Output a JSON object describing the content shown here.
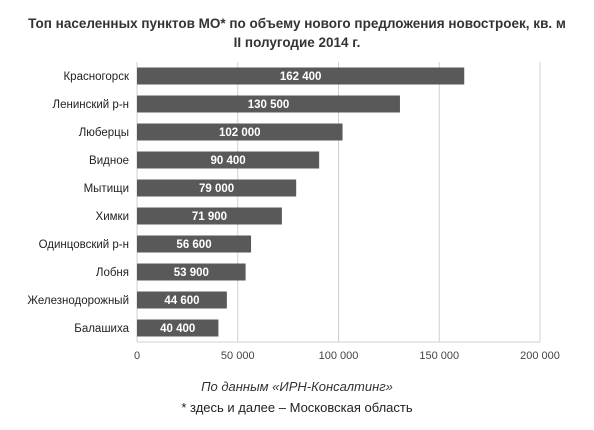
{
  "title_line1": "Топ населенных пунктов МО* по объему нового предложения новостроек, кв. м",
  "title_line2": "II полугодие 2014 г.",
  "source": "По данным «ИРН-Консалтинг»",
  "footnote": "* здесь и далее – Московская область",
  "colors": {
    "bar": "#595959",
    "grid": "#d0d0d0",
    "label": "#ffffff"
  },
  "chart_data": {
    "type": "bar",
    "orientation": "horizontal",
    "categories": [
      "Красногорск",
      "Ленинский р-н",
      "Люберцы",
      "Видное",
      "Мытищи",
      "Химки",
      "Одинцовский р-н",
      "Лобня",
      "Железнодорожный",
      "Балашиха"
    ],
    "values": [
      162400,
      130500,
      102000,
      90400,
      79000,
      71900,
      56600,
      53900,
      44600,
      40400
    ],
    "value_labels": [
      "162 400",
      "130 500",
      "102 000",
      "90 400",
      "79 000",
      "71 900",
      "56 600",
      "53 900",
      "44 600",
      "40 400"
    ],
    "xlim": [
      0,
      200000
    ],
    "xticks": [
      0,
      50000,
      100000,
      150000,
      200000
    ],
    "xtick_labels": [
      "0",
      "50 000",
      "100 000",
      "150 000",
      "200 000"
    ],
    "grid": true,
    "legend": false
  }
}
